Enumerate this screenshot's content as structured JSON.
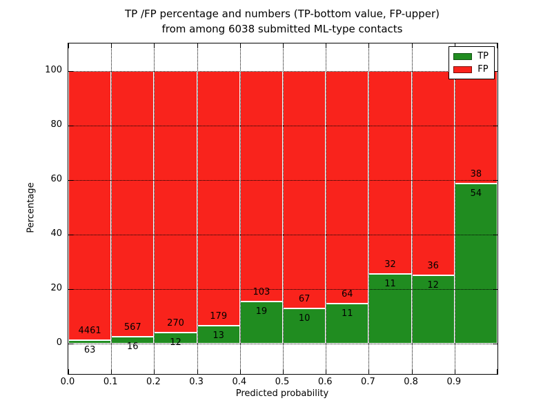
{
  "figure": {
    "background": "#ffffff"
  },
  "chart_data": {
    "type": "bar",
    "stacked": true,
    "orientation": "vertical",
    "title": "TP /FP percentage and numbers (TP-bottom value, FP-upper) from among 6038 submitted ML-type contacts",
    "title_line1": "TP /FP percentage and numbers (TP-bottom value, FP-upper)",
    "title_line2": "from among 6038 submitted ML-type contacts",
    "xlabel": "Predicted probability",
    "ylabel": "Percentage",
    "xlim": [
      0.0,
      1.0
    ],
    "ylim": [
      -11,
      110
    ],
    "bin_width": 0.1,
    "x_tick_labels": [
      "0.0",
      "0.1",
      "0.2",
      "0.3",
      "0.4",
      "0.5",
      "0.6",
      "0.7",
      "0.8",
      "0.9"
    ],
    "y_tick_labels": [
      "0",
      "20",
      "40",
      "60",
      "80",
      "100"
    ],
    "y_tick_values": [
      0,
      20,
      40,
      60,
      80,
      100
    ],
    "grid": {
      "style": "dotted",
      "color": "#000000",
      "on": true
    },
    "bar_edge_color": "#ffffff",
    "total_contacts": 6038,
    "series": [
      {
        "name": "TP",
        "color": "#208c20",
        "counts": [
          63,
          16,
          12,
          13,
          19,
          10,
          11,
          11,
          12,
          54
        ]
      },
      {
        "name": "FP",
        "color": "#f9231c",
        "counts": [
          4461,
          567,
          270,
          179,
          103,
          67,
          64,
          32,
          36,
          38
        ]
      }
    ],
    "tp_percent": [
      1.4,
      2.7,
      4.3,
      6.8,
      15.6,
      13.0,
      14.7,
      25.6,
      25.0,
      58.7
    ],
    "legend": {
      "position": "upper-right",
      "entries": [
        {
          "label": "TP",
          "color": "#208c20"
        },
        {
          "label": "FP",
          "color": "#f9231c"
        }
      ]
    }
  }
}
